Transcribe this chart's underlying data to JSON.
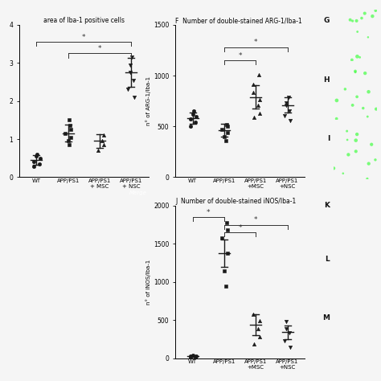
{
  "panel_E": {
    "title": "area of Iba-1 positive cells",
    "ylabel": "",
    "xlabel_groups": [
      "WT",
      "APP/PS1",
      "APP/PS1\n+ MSC",
      "APP/PS1\n+ NSC"
    ],
    "group_means": [
      0.45,
      1.15,
      0.95,
      2.75
    ],
    "group_sems": [
      0.12,
      0.22,
      0.18,
      0.38
    ],
    "scatter_data": [
      [
        0.28,
        0.35,
        0.42,
        0.5,
        0.55,
        0.6
      ],
      [
        0.85,
        0.95,
        1.05,
        1.15,
        1.25,
        1.35,
        1.5
      ],
      [
        0.7,
        0.85,
        0.95,
        1.1
      ],
      [
        2.1,
        2.3,
        2.55,
        2.75,
        2.95,
        3.15
      ]
    ],
    "markers": [
      "o",
      "s",
      "^",
      "v"
    ],
    "ylim": [
      0,
      4
    ],
    "yticks": [
      0,
      1,
      2,
      3,
      4
    ],
    "sig_bars": [
      [
        0,
        3,
        3.55,
        "*"
      ],
      [
        1,
        3,
        3.25,
        "*"
      ]
    ]
  },
  "panel_F": {
    "title": "F  Number of double-stained ARG-1/Iba-1",
    "ylabel": "n° of ARG-1/Iba-1",
    "xlabel_groups": [
      "WT",
      "APP/PS1",
      "APP/PS1\n+MSC",
      "APP/PS1\n+NSC"
    ],
    "group_means": [
      580,
      460,
      790,
      710
    ],
    "group_sems": [
      55,
      65,
      115,
      75
    ],
    "scatter_data": [
      [
        500,
        545,
        575,
        600,
        620,
        650
      ],
      [
        360,
        400,
        435,
        470,
        500,
        515
      ],
      [
        590,
        630,
        710,
        760,
        830,
        910,
        1010
      ],
      [
        555,
        605,
        655,
        705,
        735,
        785
      ]
    ],
    "markers": [
      "o",
      "s",
      "^",
      "v"
    ],
    "ylim": [
      0,
      1500
    ],
    "yticks": [
      0,
      500,
      1000,
      1500
    ],
    "sig_bars": [
      [
        1,
        2,
        1150,
        "*"
      ],
      [
        1,
        3,
        1280,
        "*"
      ]
    ]
  },
  "panel_J": {
    "title": "J  Number of double-stained iNOS/Iba-1",
    "ylabel": "n° of iNOS/Iba-1",
    "xlabel_groups": [
      "WT",
      "APP/PS1",
      "APP/PS1\n+MSC",
      "APP/PS1\n+NSC"
    ],
    "group_means": [
      25,
      1380,
      440,
      340
    ],
    "group_sems": [
      8,
      180,
      140,
      90
    ],
    "scatter_data": [
      [
        8,
        15,
        22,
        32,
        42
      ],
      [
        950,
        1150,
        1380,
        1580,
        1680,
        1780
      ],
      [
        180,
        280,
        390,
        490,
        580
      ],
      [
        140,
        230,
        330,
        390,
        480
      ]
    ],
    "markers": [
      "o",
      "s",
      "^",
      "v"
    ],
    "ylim": [
      0,
      2000
    ],
    "yticks": [
      0,
      500,
      1000,
      1500,
      2000
    ],
    "sig_bars": [
      [
        0,
        1,
        1850,
        "*"
      ],
      [
        1,
        2,
        1650,
        "*"
      ],
      [
        1,
        3,
        1750,
        "*"
      ]
    ]
  },
  "bg_color": "#f5f5f5",
  "dot_color": "#1a1a1a",
  "line_color": "#1a1a1a",
  "sig_color": "#333333",
  "micro_bg": "#2a2a2a",
  "micro_top_colors": [
    "#0a200a",
    "#0d3a0d",
    "#0a2a0a"
  ],
  "micro_bot_colors": [
    "#1a1a1a",
    "#1a1a1a",
    "#1a1a1a"
  ],
  "side_labels": [
    "G",
    "H",
    "I",
    "K",
    "L",
    "M"
  ]
}
